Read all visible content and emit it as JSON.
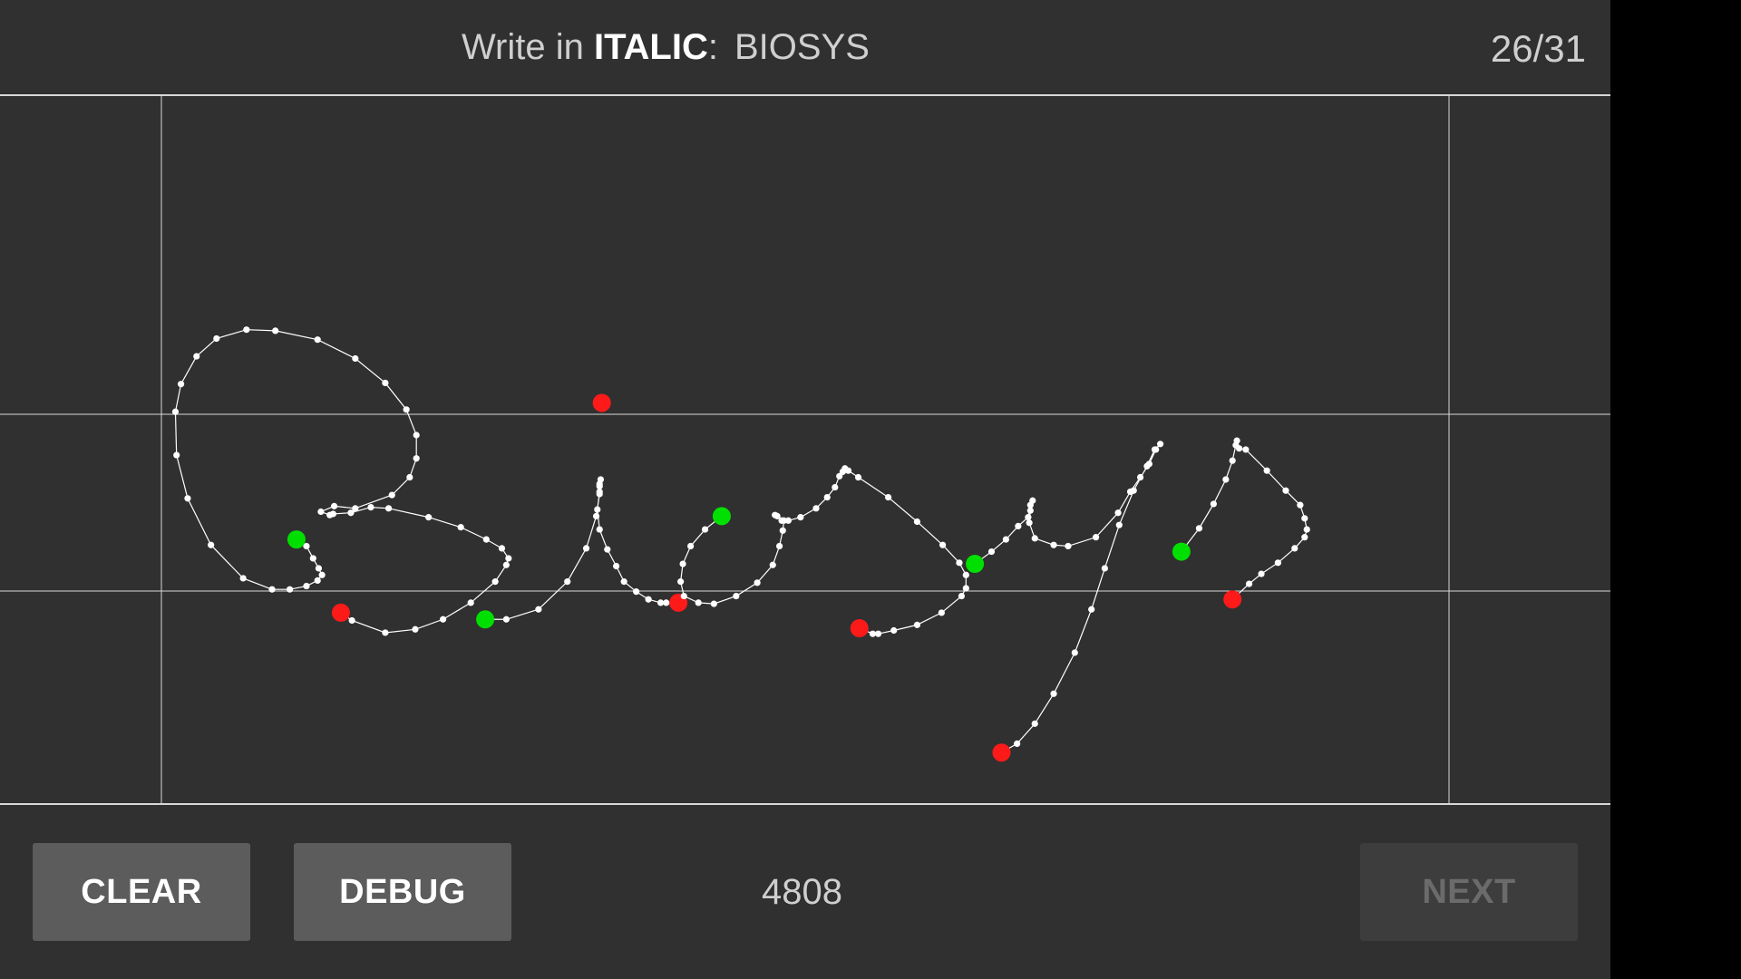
{
  "header": {
    "prompt_prefix": "Write in ",
    "prompt_style": "ITALIC",
    "prompt_colon": ":",
    "prompt_target": "BIOSYS",
    "progress": "26/31"
  },
  "footer": {
    "clear_label": "CLEAR",
    "debug_label": "DEBUG",
    "score": "4808",
    "next_label": "NEXT"
  },
  "colors": {
    "background": "#303030",
    "guide": "#d8d8d8",
    "ink": "#ffffff",
    "stroke_start": "#00e000",
    "stroke_end": "#ff1a1a",
    "button": "#5c5c5c",
    "button_disabled": "#3d3d3d"
  },
  "icons": [
    "stroke-start-marker",
    "stroke-end-marker"
  ]
}
